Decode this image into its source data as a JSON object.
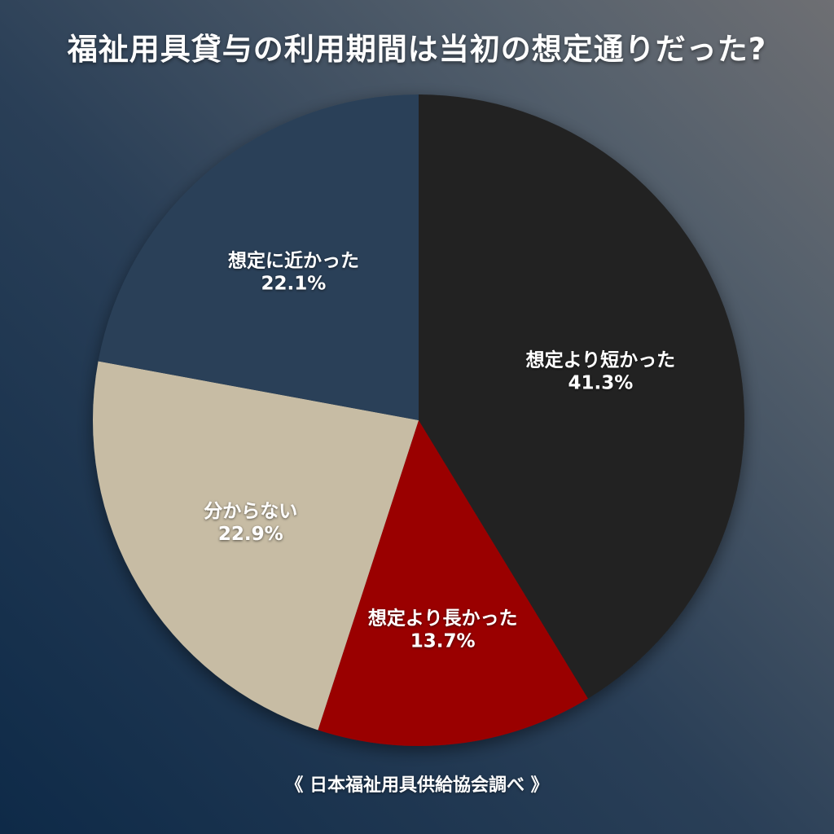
{
  "chart_data": {
    "type": "pie",
    "title": "福祉用具貸与の利用期間は当初の想定通りだった?",
    "source": "《 日本福祉用具供給協会調べ 》",
    "slices": [
      {
        "label": "想定より短かった",
        "value": 41.3,
        "value_label": "41.3%",
        "color": "#222222"
      },
      {
        "label": "想定より長かった",
        "value": 13.7,
        "value_label": "13.7%",
        "color": "#9a0000"
      },
      {
        "label": "分からない",
        "value": 22.9,
        "value_label": "22.9%",
        "color": "#c7bca4"
      },
      {
        "label": "想定に近かった",
        "value": 22.1,
        "value_label": "22.1%",
        "color": "#2b4158"
      }
    ],
    "start_angle": "12 o'clock",
    "direction": "clockwise",
    "legend": "none"
  }
}
